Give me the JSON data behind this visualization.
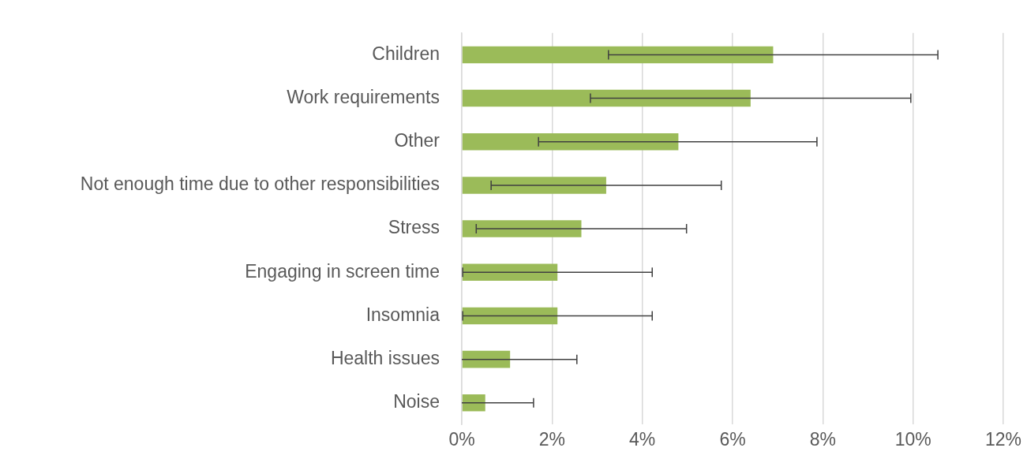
{
  "chart_data": {
    "type": "bar",
    "orientation": "horizontal",
    "categories": [
      "Children",
      "Work requirements",
      "Other",
      "Not enough time due to other responsibilities",
      "Stress",
      "Engaging in screen time",
      "Insomnia",
      "Health issues",
      "Noise"
    ],
    "values": [
      6.9,
      6.4,
      4.8,
      3.2,
      2.65,
      2.12,
      2.12,
      1.07,
      0.52
    ],
    "errors": [
      [
        3.25,
        10.55
      ],
      [
        2.85,
        9.95
      ],
      [
        1.7,
        7.87
      ],
      [
        0.65,
        5.75
      ],
      [
        0.32,
        4.98
      ],
      [
        0.02,
        4.22
      ],
      [
        0.02,
        4.22
      ],
      [
        0,
        2.55
      ],
      [
        0,
        1.59
      ]
    ],
    "color": "#9bbb59",
    "xlim": [
      0,
      12
    ],
    "xticks": [
      {
        "value": 0,
        "label": "0%"
      },
      {
        "value": 2,
        "label": "2%"
      },
      {
        "value": 4,
        "label": "4%"
      },
      {
        "value": 6,
        "label": "6%"
      },
      {
        "value": 8,
        "label": "8%"
      },
      {
        "value": 10,
        "label": "10%"
      },
      {
        "value": 12,
        "label": "12%"
      }
    ],
    "grid": "x"
  }
}
